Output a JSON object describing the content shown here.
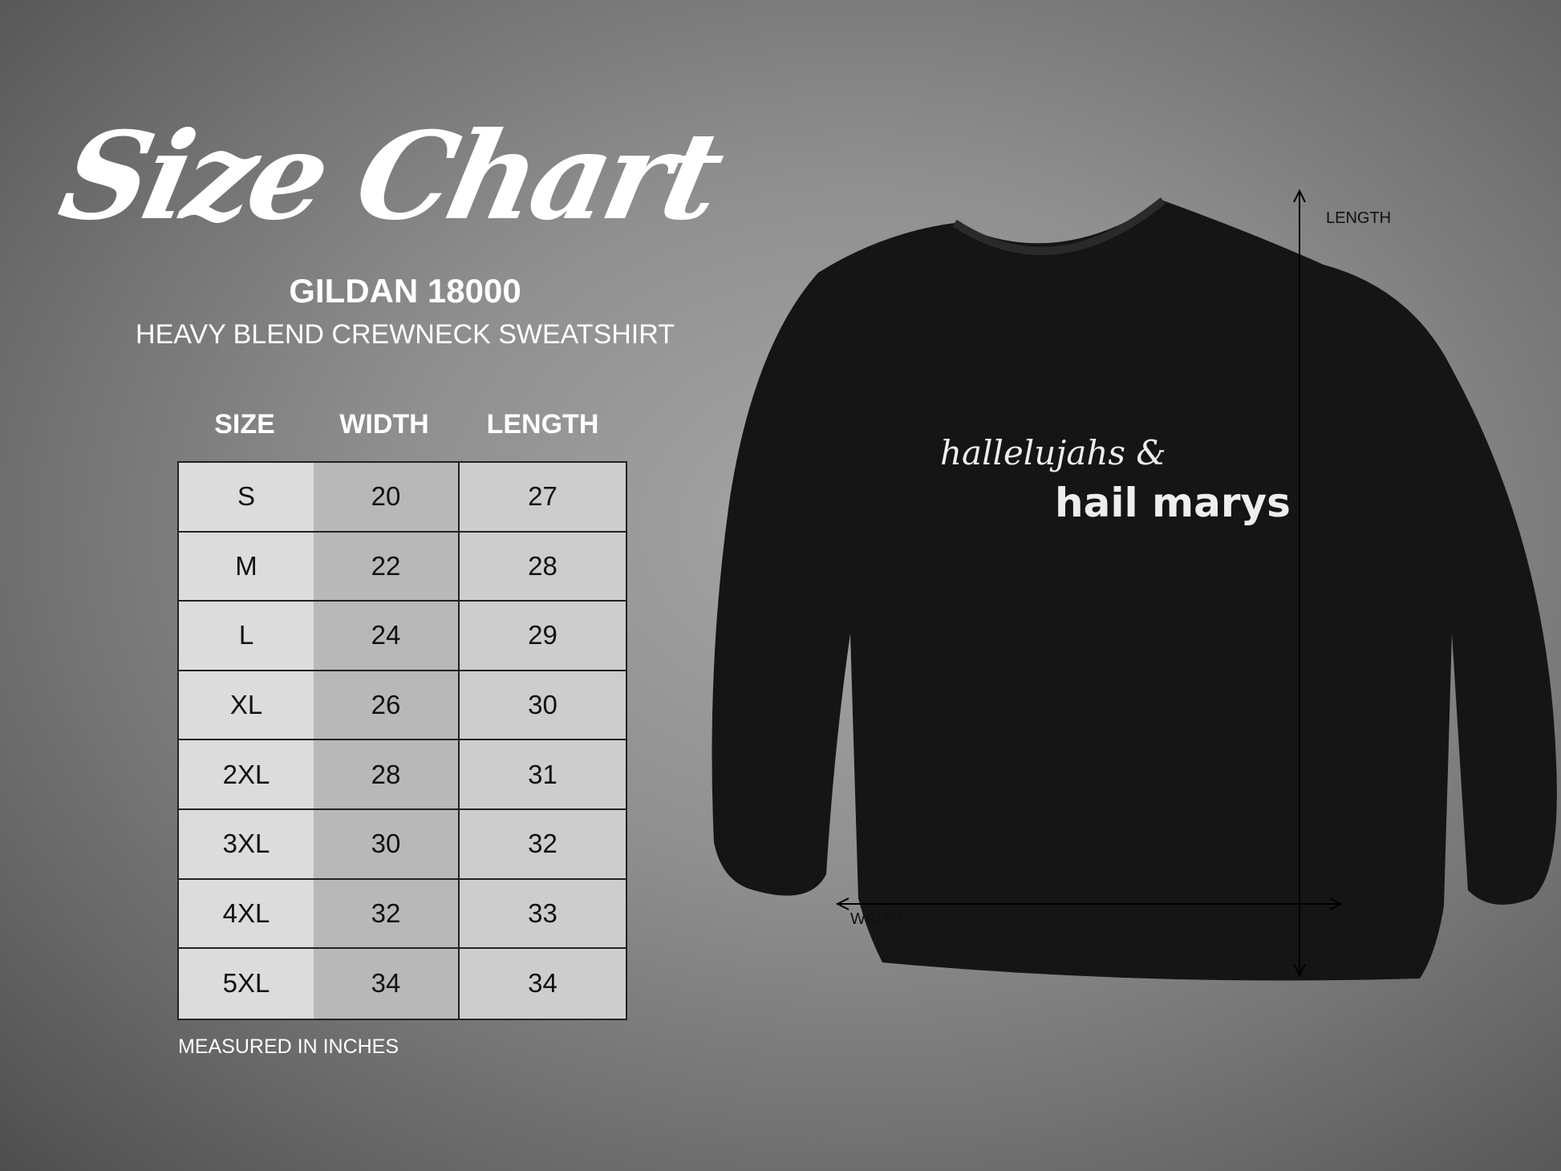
{
  "title": "Size Chart",
  "brand": "GILDAN 18000",
  "subtitle": "HEAVY BLEND CREWNECK SWEATSHIRT",
  "table": {
    "headers": [
      "SIZE",
      "WIDTH",
      "LENGTH"
    ],
    "rows": [
      [
        "S",
        "20",
        "27"
      ],
      [
        "M",
        "22",
        "28"
      ],
      [
        "L",
        "24",
        "29"
      ],
      [
        "XL",
        "26",
        "30"
      ],
      [
        "2XL",
        "28",
        "31"
      ],
      [
        "3XL",
        "30",
        "32"
      ],
      [
        "4XL",
        "32",
        "33"
      ],
      [
        "5XL",
        "34",
        "34"
      ]
    ]
  },
  "note": "MEASURED IN INCHES",
  "shirt": {
    "color": "#151515",
    "print_line1": "hallelujahs &",
    "print_line2": "hail marys",
    "length_label": "LENGTH",
    "width_label": "WIDTH"
  }
}
